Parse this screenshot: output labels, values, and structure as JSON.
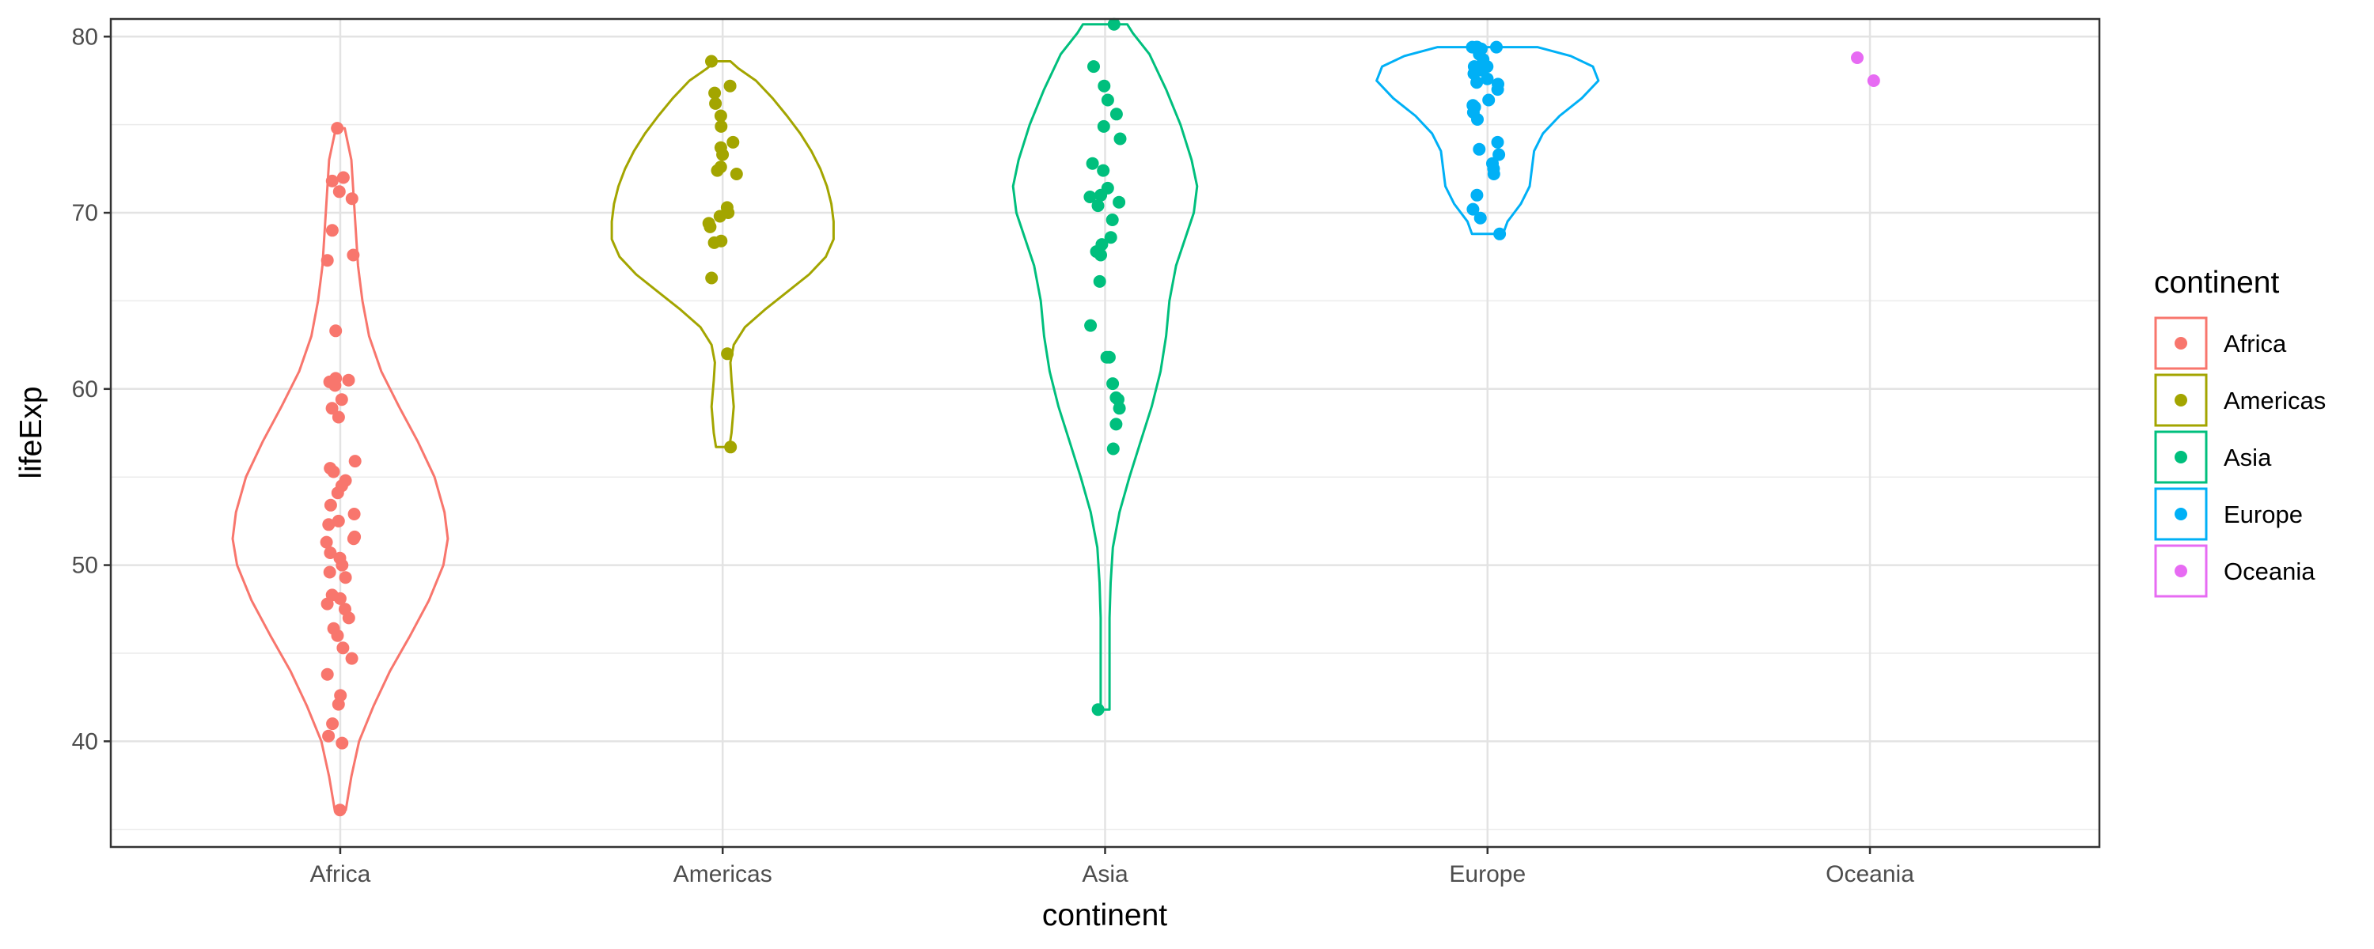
{
  "chart_data": {
    "type": "violin",
    "title": "",
    "xlabel": "continent",
    "ylabel": "lifeExp",
    "categories": [
      "Africa",
      "Americas",
      "Asia",
      "Europe",
      "Oceania"
    ],
    "ylim": [
      34,
      81
    ],
    "yticks": [
      40,
      50,
      60,
      70,
      80
    ],
    "grid": true,
    "legend": {
      "title": "continent",
      "position": "right",
      "entries": [
        "Africa",
        "Americas",
        "Asia",
        "Europe",
        "Oceania"
      ]
    },
    "colors": {
      "Africa": "#F8766D",
      "Americas": "#A3A500",
      "Asia": "#00BF7D",
      "Europe": "#00B0F6",
      "Oceania": "#E76BF3"
    },
    "series": [
      {
        "name": "Africa",
        "violin": {
          "ymin": 36.1,
          "ymax": 74.8,
          "profile": [
            [
              36.1,
              0.05
            ],
            [
              38,
              0.1
            ],
            [
              40,
              0.17
            ],
            [
              42,
              0.3
            ],
            [
              44,
              0.45
            ],
            [
              46,
              0.63
            ],
            [
              48,
              0.8
            ],
            [
              50,
              0.93
            ],
            [
              51.5,
              0.97
            ],
            [
              53,
              0.94
            ],
            [
              55,
              0.85
            ],
            [
              57,
              0.7
            ],
            [
              59,
              0.53
            ],
            [
              61,
              0.37
            ],
            [
              63,
              0.26
            ],
            [
              65,
              0.2
            ],
            [
              67,
              0.16
            ],
            [
              69,
              0.14
            ],
            [
              71,
              0.12
            ],
            [
              73,
              0.1
            ],
            [
              74.8,
              0.04
            ]
          ]
        },
        "points": [
          36.1,
          39.9,
          40.3,
          41,
          42.1,
          42.6,
          43.8,
          44.7,
          45.3,
          46,
          46.4,
          47,
          47.5,
          47.8,
          48.1,
          48.3,
          49.3,
          49.6,
          50,
          50.4,
          50.7,
          51.3,
          51.5,
          51.6,
          52.3,
          52.5,
          52.9,
          53.4,
          54.1,
          54.5,
          54.8,
          55.3,
          55.5,
          55.9,
          58.4,
          58.9,
          59.4,
          60.2,
          60.4,
          60.5,
          60.6,
          63.3,
          67.3,
          67.6,
          69,
          70.8,
          71.2,
          71.8,
          72,
          74.8
        ]
      },
      {
        "name": "Americas",
        "violin": {
          "ymin": 56.7,
          "ymax": 78.6,
          "profile": [
            [
              56.7,
              0.06
            ],
            [
              57.5,
              0.08
            ],
            [
              59,
              0.1
            ],
            [
              60.5,
              0.08
            ],
            [
              61.5,
              0.07
            ],
            [
              62.5,
              0.1
            ],
            [
              63.5,
              0.2
            ],
            [
              64.5,
              0.38
            ],
            [
              65.5,
              0.58
            ],
            [
              66.5,
              0.78
            ],
            [
              67.5,
              0.93
            ],
            [
              68.5,
              1.0
            ],
            [
              69.5,
              1.0
            ],
            [
              70.5,
              0.98
            ],
            [
              71.5,
              0.94
            ],
            [
              72.5,
              0.88
            ],
            [
              73.5,
              0.8
            ],
            [
              74.5,
              0.7
            ],
            [
              75.5,
              0.58
            ],
            [
              76.5,
              0.45
            ],
            [
              77.5,
              0.3
            ],
            [
              78.2,
              0.14
            ],
            [
              78.6,
              0.07
            ]
          ]
        },
        "points": [
          56.7,
          62,
          66.3,
          68.3,
          68.4,
          69.2,
          69.4,
          69.8,
          70,
          70.3,
          72.2,
          72.4,
          72.6,
          73.3,
          73.7,
          74,
          74.9,
          75.5,
          76.2,
          76.8,
          77.2,
          78.6
        ]
      },
      {
        "name": "Asia",
        "violin": {
          "ymin": 41.8,
          "ymax": 80.7,
          "profile": [
            [
              41.8,
              0.04
            ],
            [
              44,
              0.04
            ],
            [
              47,
              0.04
            ],
            [
              49,
              0.05
            ],
            [
              51,
              0.07
            ],
            [
              53,
              0.13
            ],
            [
              55,
              0.22
            ],
            [
              57,
              0.32
            ],
            [
              59,
              0.42
            ],
            [
              61,
              0.5
            ],
            [
              63,
              0.55
            ],
            [
              65,
              0.58
            ],
            [
              67,
              0.64
            ],
            [
              68.5,
              0.72
            ],
            [
              70,
              0.8
            ],
            [
              71.5,
              0.83
            ],
            [
              73,
              0.78
            ],
            [
              75,
              0.68
            ],
            [
              77,
              0.55
            ],
            [
              79,
              0.4
            ],
            [
              80.2,
              0.25
            ],
            [
              80.7,
              0.2
            ]
          ]
        },
        "points": [
          41.8,
          56.6,
          58,
          58.9,
          59.4,
          59.5,
          60.3,
          61.8,
          61.8,
          63.6,
          66.1,
          67.6,
          67.8,
          68.2,
          68.6,
          69.6,
          70.4,
          70.6,
          70.9,
          71,
          71.4,
          72.4,
          72.8,
          74.2,
          74.9,
          75.6,
          76.4,
          77.2,
          78.3,
          80.7
        ]
      },
      {
        "name": "Europe",
        "violin": {
          "ymin": 68.8,
          "ymax": 79.4,
          "profile": [
            [
              68.8,
              0.14
            ],
            [
              69.5,
              0.18
            ],
            [
              70.5,
              0.3
            ],
            [
              71.5,
              0.38
            ],
            [
              72.5,
              0.4
            ],
            [
              73.5,
              0.42
            ],
            [
              74.5,
              0.5
            ],
            [
              75.5,
              0.65
            ],
            [
              76.5,
              0.85
            ],
            [
              77.5,
              1.0
            ],
            [
              78.3,
              0.95
            ],
            [
              78.9,
              0.75
            ],
            [
              79.4,
              0.45
            ]
          ]
        },
        "points": [
          68.8,
          69.7,
          70.2,
          71,
          72.2,
          72.5,
          72.8,
          73.3,
          73.6,
          74,
          75.3,
          75.7,
          76,
          76.1,
          76.4,
          77,
          77.3,
          77.4,
          77.6,
          77.9,
          78.1,
          78.3,
          78.3,
          78.7,
          79,
          79.3,
          79.4,
          79.4,
          79.4,
          79.4
        ]
      },
      {
        "name": "Oceania",
        "violin": null,
        "points": [
          77.5,
          78.8
        ]
      }
    ]
  }
}
